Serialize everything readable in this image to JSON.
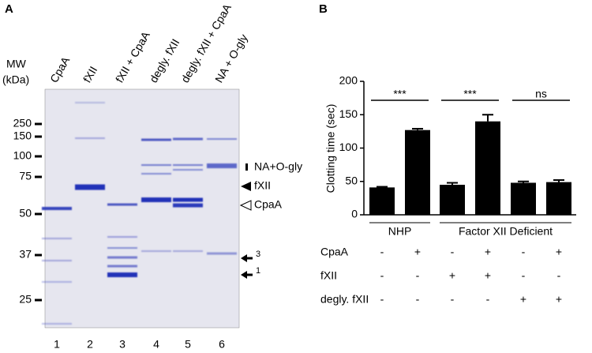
{
  "panel_a": {
    "label": "A",
    "mw_title": [
      "MW",
      "(kDa)"
    ],
    "lanes": [
      "CpaA",
      "fXII",
      "fXII + CpaA",
      "degly. fXII",
      "degly. fXII + CpaA",
      "NA + O-gly"
    ],
    "lane_numbers": [
      "1",
      "2",
      "3",
      "4",
      "5",
      "6"
    ],
    "mw_markers": [
      "250",
      "150",
      "100",
      "75",
      "50",
      "37",
      "25"
    ],
    "annotations": [
      "NA+O-gly",
      "fXII",
      "CpaA",
      "3",
      "1"
    ]
  },
  "chart_data": {
    "type": "bar",
    "panel_label": "B",
    "y_label": "Clotting time (sec)",
    "categories": [
      null,
      null,
      null,
      null,
      null,
      null
    ],
    "series": [
      {
        "color": "#000000",
        "values": [
          41,
          127,
          45,
          140,
          48,
          49
        ],
        "errors": [
          1,
          2,
          3,
          10,
          2,
          3
        ]
      }
    ],
    "ylim": [
      0,
      200
    ],
    "yticks": [
      0,
      50,
      100,
      150,
      200
    ],
    "significance": [
      "***",
      "***",
      "ns"
    ],
    "groups": [
      "NHP",
      "Factor XII Deficient"
    ],
    "conditions": [
      {
        "name": "CpaA",
        "marks": [
          "-",
          "+",
          "-",
          "+",
          "-",
          "+"
        ]
      },
      {
        "name": "fXII",
        "marks": [
          "-",
          "-",
          "+",
          "+",
          "-",
          "-"
        ]
      },
      {
        "name": "degly. fXII",
        "marks": [
          "-",
          "-",
          "-",
          "-",
          "+",
          "+"
        ]
      }
    ]
  }
}
